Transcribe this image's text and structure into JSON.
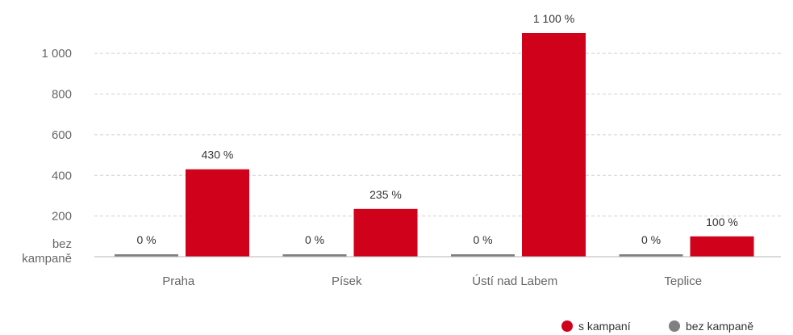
{
  "chart_data": {
    "type": "bar",
    "categories": [
      "Praha",
      "Písek",
      "Ústí nad Labem",
      "Teplice"
    ],
    "series": [
      {
        "name": "bez kampaně",
        "color": "#808080",
        "values": [
          0,
          0,
          0,
          0
        ],
        "labels": [
          "0 %",
          "0 %",
          "0 %",
          "0 %"
        ]
      },
      {
        "name": "s kampaní",
        "color": "#d0021b",
        "values": [
          430,
          235,
          1100,
          100
        ],
        "labels": [
          "430 %",
          "235 %",
          "1 100 %",
          "100 %"
        ]
      }
    ],
    "yticks": [
      {
        "value": 0,
        "lines": [
          "bez",
          "kampaně"
        ]
      },
      {
        "value": 200,
        "lines": [
          "200"
        ]
      },
      {
        "value": 400,
        "lines": [
          "400"
        ]
      },
      {
        "value": 600,
        "lines": [
          "600"
        ]
      },
      {
        "value": 800,
        "lines": [
          "800"
        ]
      },
      {
        "value": 1000,
        "lines": [
          "1 000"
        ]
      }
    ],
    "ylim": [
      0,
      1100
    ],
    "grid": true,
    "legend_position": "bottom-right",
    "legend_order": [
      1,
      0
    ]
  }
}
